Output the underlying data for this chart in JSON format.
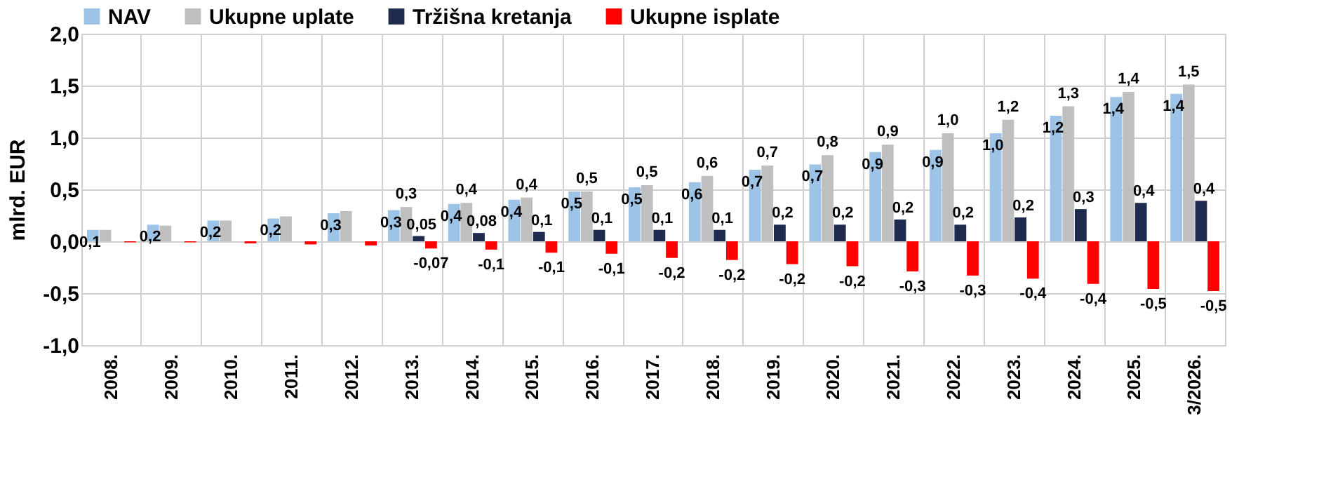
{
  "chart_data": {
    "type": "bar",
    "ylabel": "mlrd. EUR",
    "categories": [
      "2008.",
      "2009.",
      "2010.",
      "2011.",
      "2012.",
      "2013.",
      "2014.",
      "2015.",
      "2016.",
      "2017.",
      "2018.",
      "2019.",
      "2020.",
      "2021.",
      "2022.",
      "2023.",
      "2024.",
      "2025.",
      "3/2026."
    ],
    "series": [
      {
        "name": "NAV",
        "color": "#9dc3e6",
        "values": [
          0.11,
          0.16,
          0.2,
          0.22,
          0.27,
          0.3,
          0.36,
          0.4,
          0.48,
          0.52,
          0.57,
          0.69,
          0.74,
          0.86,
          0.88,
          1.04,
          1.21,
          1.39,
          1.42
        ],
        "value_labels": [
          "0,1",
          "0,2",
          "0,2",
          "0,2",
          "0,3",
          "0,3",
          "0,4",
          "0,4",
          "0,5",
          "0,5",
          "0,6",
          "0,7",
          "0,7",
          "0,9",
          "0,9",
          "1,0",
          "1,2",
          "1,4",
          "1,4"
        ]
      },
      {
        "name": "Ukupne uplate",
        "color": "#bfbfbf",
        "values": [
          0.11,
          0.15,
          0.2,
          0.24,
          0.29,
          0.33,
          0.37,
          0.42,
          0.48,
          0.54,
          0.63,
          0.73,
          0.83,
          0.93,
          1.04,
          1.17,
          1.3,
          1.44,
          1.51
        ],
        "value_labels": [
          null,
          null,
          null,
          null,
          null,
          "0,3",
          "0,4",
          "0,4",
          "0,5",
          "0,5",
          "0,6",
          "0,7",
          "0,8",
          "0,9",
          "1,0",
          "1,2",
          "1,3",
          "1,4",
          "1,5"
        ]
      },
      {
        "name": "Tržišna kretanja",
        "color": "#1f2a4f",
        "values": [
          0.0,
          0.0,
          0.0,
          0.0,
          0.0,
          0.05,
          0.08,
          0.09,
          0.11,
          0.11,
          0.11,
          0.16,
          0.16,
          0.21,
          0.16,
          0.23,
          0.31,
          0.37,
          0.39
        ],
        "value_labels": [
          null,
          null,
          null,
          null,
          null,
          "0,05",
          "0,08",
          "0,1",
          "0,1",
          "0,1",
          "0,1",
          "0,2",
          "0,2",
          "0,2",
          "0,2",
          "0,2",
          "0,3",
          "0,4",
          "0,4"
        ]
      },
      {
        "name": "Ukupne isplate",
        "color": "#ff0000",
        "values": [
          -0.01,
          -0.01,
          -0.02,
          -0.03,
          -0.04,
          -0.07,
          -0.08,
          -0.11,
          -0.12,
          -0.16,
          -0.18,
          -0.22,
          -0.24,
          -0.29,
          -0.33,
          -0.36,
          -0.41,
          -0.46,
          -0.48
        ],
        "value_labels": [
          null,
          null,
          null,
          null,
          null,
          "-0,07",
          "-0,1",
          "-0,1",
          "-0,1",
          "-0,2",
          "-0,2",
          "-0,2",
          "-0,2",
          "-0,3",
          "-0,3",
          "-0,4",
          "-0,4",
          "-0,5",
          "-0,5"
        ]
      }
    ],
    "ylim": [
      -1.0,
      2.0
    ],
    "yticks": [
      {
        "value": -1.0,
        "label": "-1,0"
      },
      {
        "value": -0.5,
        "label": "-0,5"
      },
      {
        "value": 0.0,
        "label": "0,0"
      },
      {
        "value": 0.5,
        "label": "0,5"
      },
      {
        "value": 1.0,
        "label": "1,0"
      },
      {
        "value": 1.5,
        "label": "1,5"
      },
      {
        "value": 2.0,
        "label": "2,0"
      }
    ],
    "grid": true,
    "legend": "top"
  }
}
